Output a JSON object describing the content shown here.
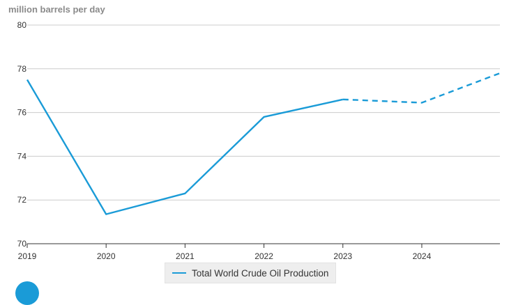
{
  "chart_data": {
    "type": "line",
    "ylabel": "million barrels per day",
    "ylim": [
      70,
      80
    ],
    "yticks": [
      70,
      72,
      74,
      76,
      78,
      80
    ],
    "xlim": [
      2019,
      2024.99
    ],
    "xticks": [
      "2019",
      "2020",
      "2021",
      "2022",
      "2023",
      "2024"
    ],
    "grid": true,
    "legend": "bottom",
    "series": [
      {
        "name": "Total World Crude Oil Production",
        "color": "#1a9bd7",
        "points": [
          {
            "x": 2019,
            "y": 77.5
          },
          {
            "x": 2020,
            "y": 71.35
          },
          {
            "x": 2021,
            "y": 72.3
          },
          {
            "x": 2022,
            "y": 75.8
          },
          {
            "x": 2023,
            "y": 76.6
          },
          {
            "x": 2024,
            "y": 76.45
          },
          {
            "x": 2024.99,
            "y": 77.8
          }
        ],
        "forecast_from": 2023
      }
    ]
  }
}
